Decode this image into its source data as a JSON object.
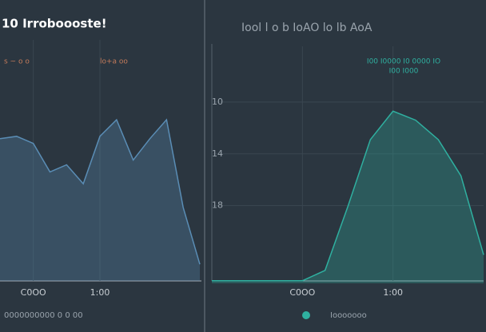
{
  "header": {
    "left_title": "10 Irroboooste!",
    "right_title": "Iool l o b IoAO lo lb AoA"
  },
  "chart_data": [
    {
      "type": "area",
      "series_labels": [
        "s ~ o o",
        "lo+a oo"
      ],
      "x": [
        0,
        1,
        2,
        3,
        4,
        5,
        6,
        7,
        8,
        9,
        10,
        11,
        12
      ],
      "series": [
        {
          "name": "0000000000 0 0 00",
          "color": "#5a8db5",
          "values": [
            60,
            61,
            58,
            46,
            49,
            41,
            61,
            68,
            51,
            60,
            68,
            31,
            7
          ]
        }
      ],
      "ylim": [
        0,
        100
      ],
      "xlim": [
        0,
        12
      ],
      "xticks": [
        {
          "value": 2,
          "label": "C0OO"
        },
        {
          "value": 6,
          "label": "1:00"
        }
      ]
    },
    {
      "type": "area",
      "x": [
        0,
        1,
        2,
        3,
        4,
        5,
        6,
        7,
        8,
        9,
        10,
        11,
        12
      ],
      "series": [
        {
          "name": "Iooooooo",
          "color": "#2fb0a0",
          "values": [
            23.8,
            23.8,
            23.8,
            23.8,
            23.8,
            23,
            18.1,
            12.9,
            10.7,
            11.4,
            12.9,
            15.7,
            21.8
          ]
        }
      ],
      "annotation": [
        "I00 I0000 I0 0000 IO",
        "I00 I000"
      ],
      "ylim": [
        24,
        6
      ],
      "xlim": [
        0,
        12
      ],
      "yticks": [
        10,
        14,
        18
      ],
      "xticks": [
        {
          "value": 4,
          "label": "C0OO"
        },
        {
          "value": 8,
          "label": "1:00"
        }
      ]
    }
  ]
}
